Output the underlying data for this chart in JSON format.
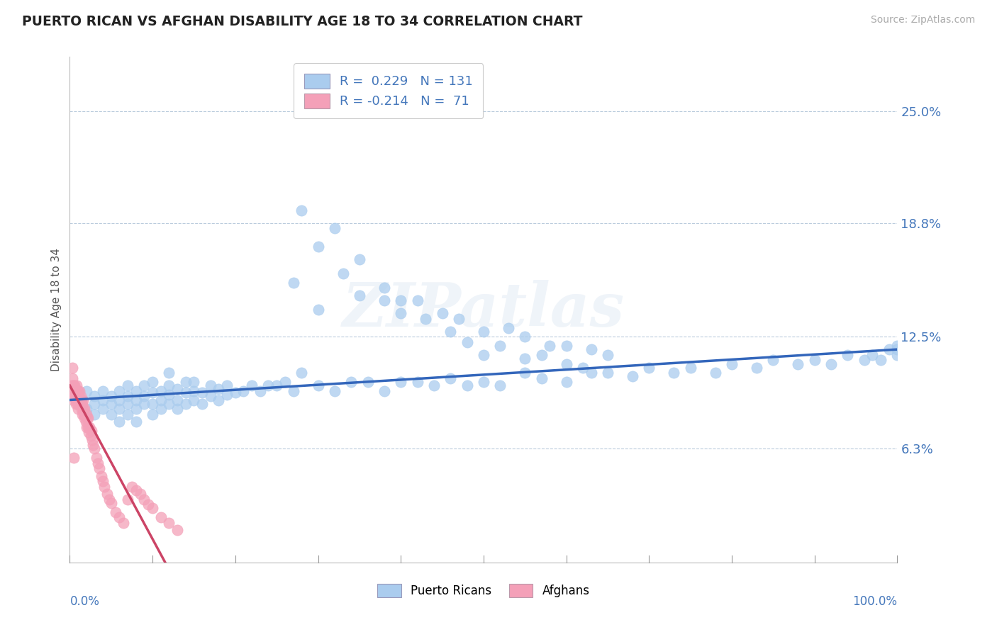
{
  "title": "PUERTO RICAN VS AFGHAN DISABILITY AGE 18 TO 34 CORRELATION CHART",
  "source": "Source: ZipAtlas.com",
  "ylabel": "Disability Age 18 to 34",
  "ytick_labels": [
    "6.3%",
    "12.5%",
    "18.8%",
    "25.0%"
  ],
  "ytick_values": [
    0.063,
    0.125,
    0.188,
    0.25
  ],
  "xmin": 0.0,
  "xmax": 1.0,
  "ymin": 0.0,
  "ymax": 0.28,
  "r_blue": "0.229",
  "n_blue": "131",
  "r_pink": "-0.214",
  "n_pink": "71",
  "blue_color": "#aaccee",
  "pink_color": "#f4a0b8",
  "trend_blue_color": "#3366bb",
  "trend_pink_color": "#cc4466",
  "watermark_text": "ZIPatlas",
  "blue_trend_start_y": 0.09,
  "blue_trend_end_y": 0.118,
  "pink_trend_start_y": 0.098,
  "pink_trend_slope": -0.85,
  "blue_x": [
    0.01,
    0.02,
    0.02,
    0.03,
    0.03,
    0.03,
    0.04,
    0.04,
    0.04,
    0.05,
    0.05,
    0.05,
    0.06,
    0.06,
    0.06,
    0.06,
    0.07,
    0.07,
    0.07,
    0.07,
    0.08,
    0.08,
    0.08,
    0.08,
    0.09,
    0.09,
    0.09,
    0.1,
    0.1,
    0.1,
    0.1,
    0.11,
    0.11,
    0.11,
    0.12,
    0.12,
    0.12,
    0.12,
    0.13,
    0.13,
    0.13,
    0.14,
    0.14,
    0.14,
    0.15,
    0.15,
    0.15,
    0.16,
    0.16,
    0.17,
    0.17,
    0.18,
    0.18,
    0.19,
    0.19,
    0.2,
    0.21,
    0.22,
    0.23,
    0.24,
    0.25,
    0.26,
    0.27,
    0.28,
    0.3,
    0.32,
    0.34,
    0.36,
    0.38,
    0.4,
    0.42,
    0.44,
    0.46,
    0.48,
    0.5,
    0.52,
    0.55,
    0.57,
    0.6,
    0.63,
    0.65,
    0.68,
    0.7,
    0.73,
    0.75,
    0.78,
    0.8,
    0.83,
    0.85,
    0.88,
    0.9,
    0.92,
    0.94,
    0.96,
    0.97,
    0.98,
    0.99,
    1.0,
    1.0,
    1.0,
    0.27,
    0.3,
    0.33,
    0.3,
    0.35,
    0.38,
    0.4,
    0.42,
    0.45,
    0.47,
    0.5,
    0.53,
    0.55,
    0.58,
    0.6,
    0.63,
    0.65,
    0.28,
    0.32,
    0.35,
    0.38,
    0.4,
    0.43,
    0.46,
    0.48,
    0.5,
    0.52,
    0.55,
    0.57,
    0.6,
    0.62
  ],
  "blue_y": [
    0.09,
    0.095,
    0.085,
    0.088,
    0.082,
    0.092,
    0.09,
    0.085,
    0.095,
    0.088,
    0.082,
    0.092,
    0.085,
    0.09,
    0.095,
    0.078,
    0.082,
    0.088,
    0.092,
    0.098,
    0.085,
    0.09,
    0.095,
    0.078,
    0.088,
    0.092,
    0.098,
    0.082,
    0.088,
    0.094,
    0.1,
    0.085,
    0.09,
    0.095,
    0.088,
    0.093,
    0.098,
    0.105,
    0.085,
    0.09,
    0.096,
    0.088,
    0.094,
    0.1,
    0.09,
    0.095,
    0.1,
    0.088,
    0.094,
    0.092,
    0.098,
    0.09,
    0.096,
    0.093,
    0.098,
    0.094,
    0.095,
    0.098,
    0.095,
    0.098,
    0.098,
    0.1,
    0.095,
    0.105,
    0.098,
    0.095,
    0.1,
    0.1,
    0.095,
    0.1,
    0.1,
    0.098,
    0.102,
    0.098,
    0.1,
    0.098,
    0.105,
    0.102,
    0.1,
    0.105,
    0.105,
    0.103,
    0.108,
    0.105,
    0.108,
    0.105,
    0.11,
    0.108,
    0.112,
    0.11,
    0.112,
    0.11,
    0.115,
    0.112,
    0.115,
    0.112,
    0.118,
    0.115,
    0.12,
    0.118,
    0.155,
    0.175,
    0.16,
    0.14,
    0.148,
    0.145,
    0.138,
    0.145,
    0.138,
    0.135,
    0.128,
    0.13,
    0.125,
    0.12,
    0.12,
    0.118,
    0.115,
    0.195,
    0.185,
    0.168,
    0.152,
    0.145,
    0.135,
    0.128,
    0.122,
    0.115,
    0.12,
    0.113,
    0.115,
    0.11,
    0.108
  ],
  "pink_x": [
    0.002,
    0.003,
    0.004,
    0.004,
    0.005,
    0.005,
    0.005,
    0.006,
    0.006,
    0.007,
    0.007,
    0.007,
    0.008,
    0.008,
    0.009,
    0.009,
    0.01,
    0.01,
    0.01,
    0.011,
    0.011,
    0.012,
    0.012,
    0.013,
    0.013,
    0.014,
    0.014,
    0.015,
    0.015,
    0.016,
    0.016,
    0.017,
    0.018,
    0.018,
    0.019,
    0.02,
    0.02,
    0.021,
    0.022,
    0.022,
    0.023,
    0.024,
    0.025,
    0.026,
    0.027,
    0.028,
    0.03,
    0.032,
    0.034,
    0.036,
    0.038,
    0.04,
    0.042,
    0.045,
    0.048,
    0.05,
    0.055,
    0.06,
    0.065,
    0.07,
    0.075,
    0.08,
    0.085,
    0.09,
    0.095,
    0.1,
    0.11,
    0.12,
    0.13,
    0.003,
    0.005
  ],
  "pink_y": [
    0.098,
    0.102,
    0.098,
    0.092,
    0.095,
    0.09,
    0.098,
    0.092,
    0.098,
    0.088,
    0.095,
    0.09,
    0.092,
    0.098,
    0.088,
    0.095,
    0.09,
    0.095,
    0.085,
    0.092,
    0.088,
    0.09,
    0.095,
    0.088,
    0.092,
    0.085,
    0.09,
    0.088,
    0.082,
    0.085,
    0.09,
    0.082,
    0.08,
    0.085,
    0.078,
    0.082,
    0.075,
    0.08,
    0.075,
    0.08,
    0.072,
    0.075,
    0.07,
    0.073,
    0.068,
    0.065,
    0.063,
    0.058,
    0.055,
    0.052,
    0.048,
    0.045,
    0.042,
    0.038,
    0.035,
    0.033,
    0.028,
    0.025,
    0.022,
    0.035,
    0.042,
    0.04,
    0.038,
    0.035,
    0.032,
    0.03,
    0.025,
    0.022,
    0.018,
    0.108,
    0.058
  ]
}
